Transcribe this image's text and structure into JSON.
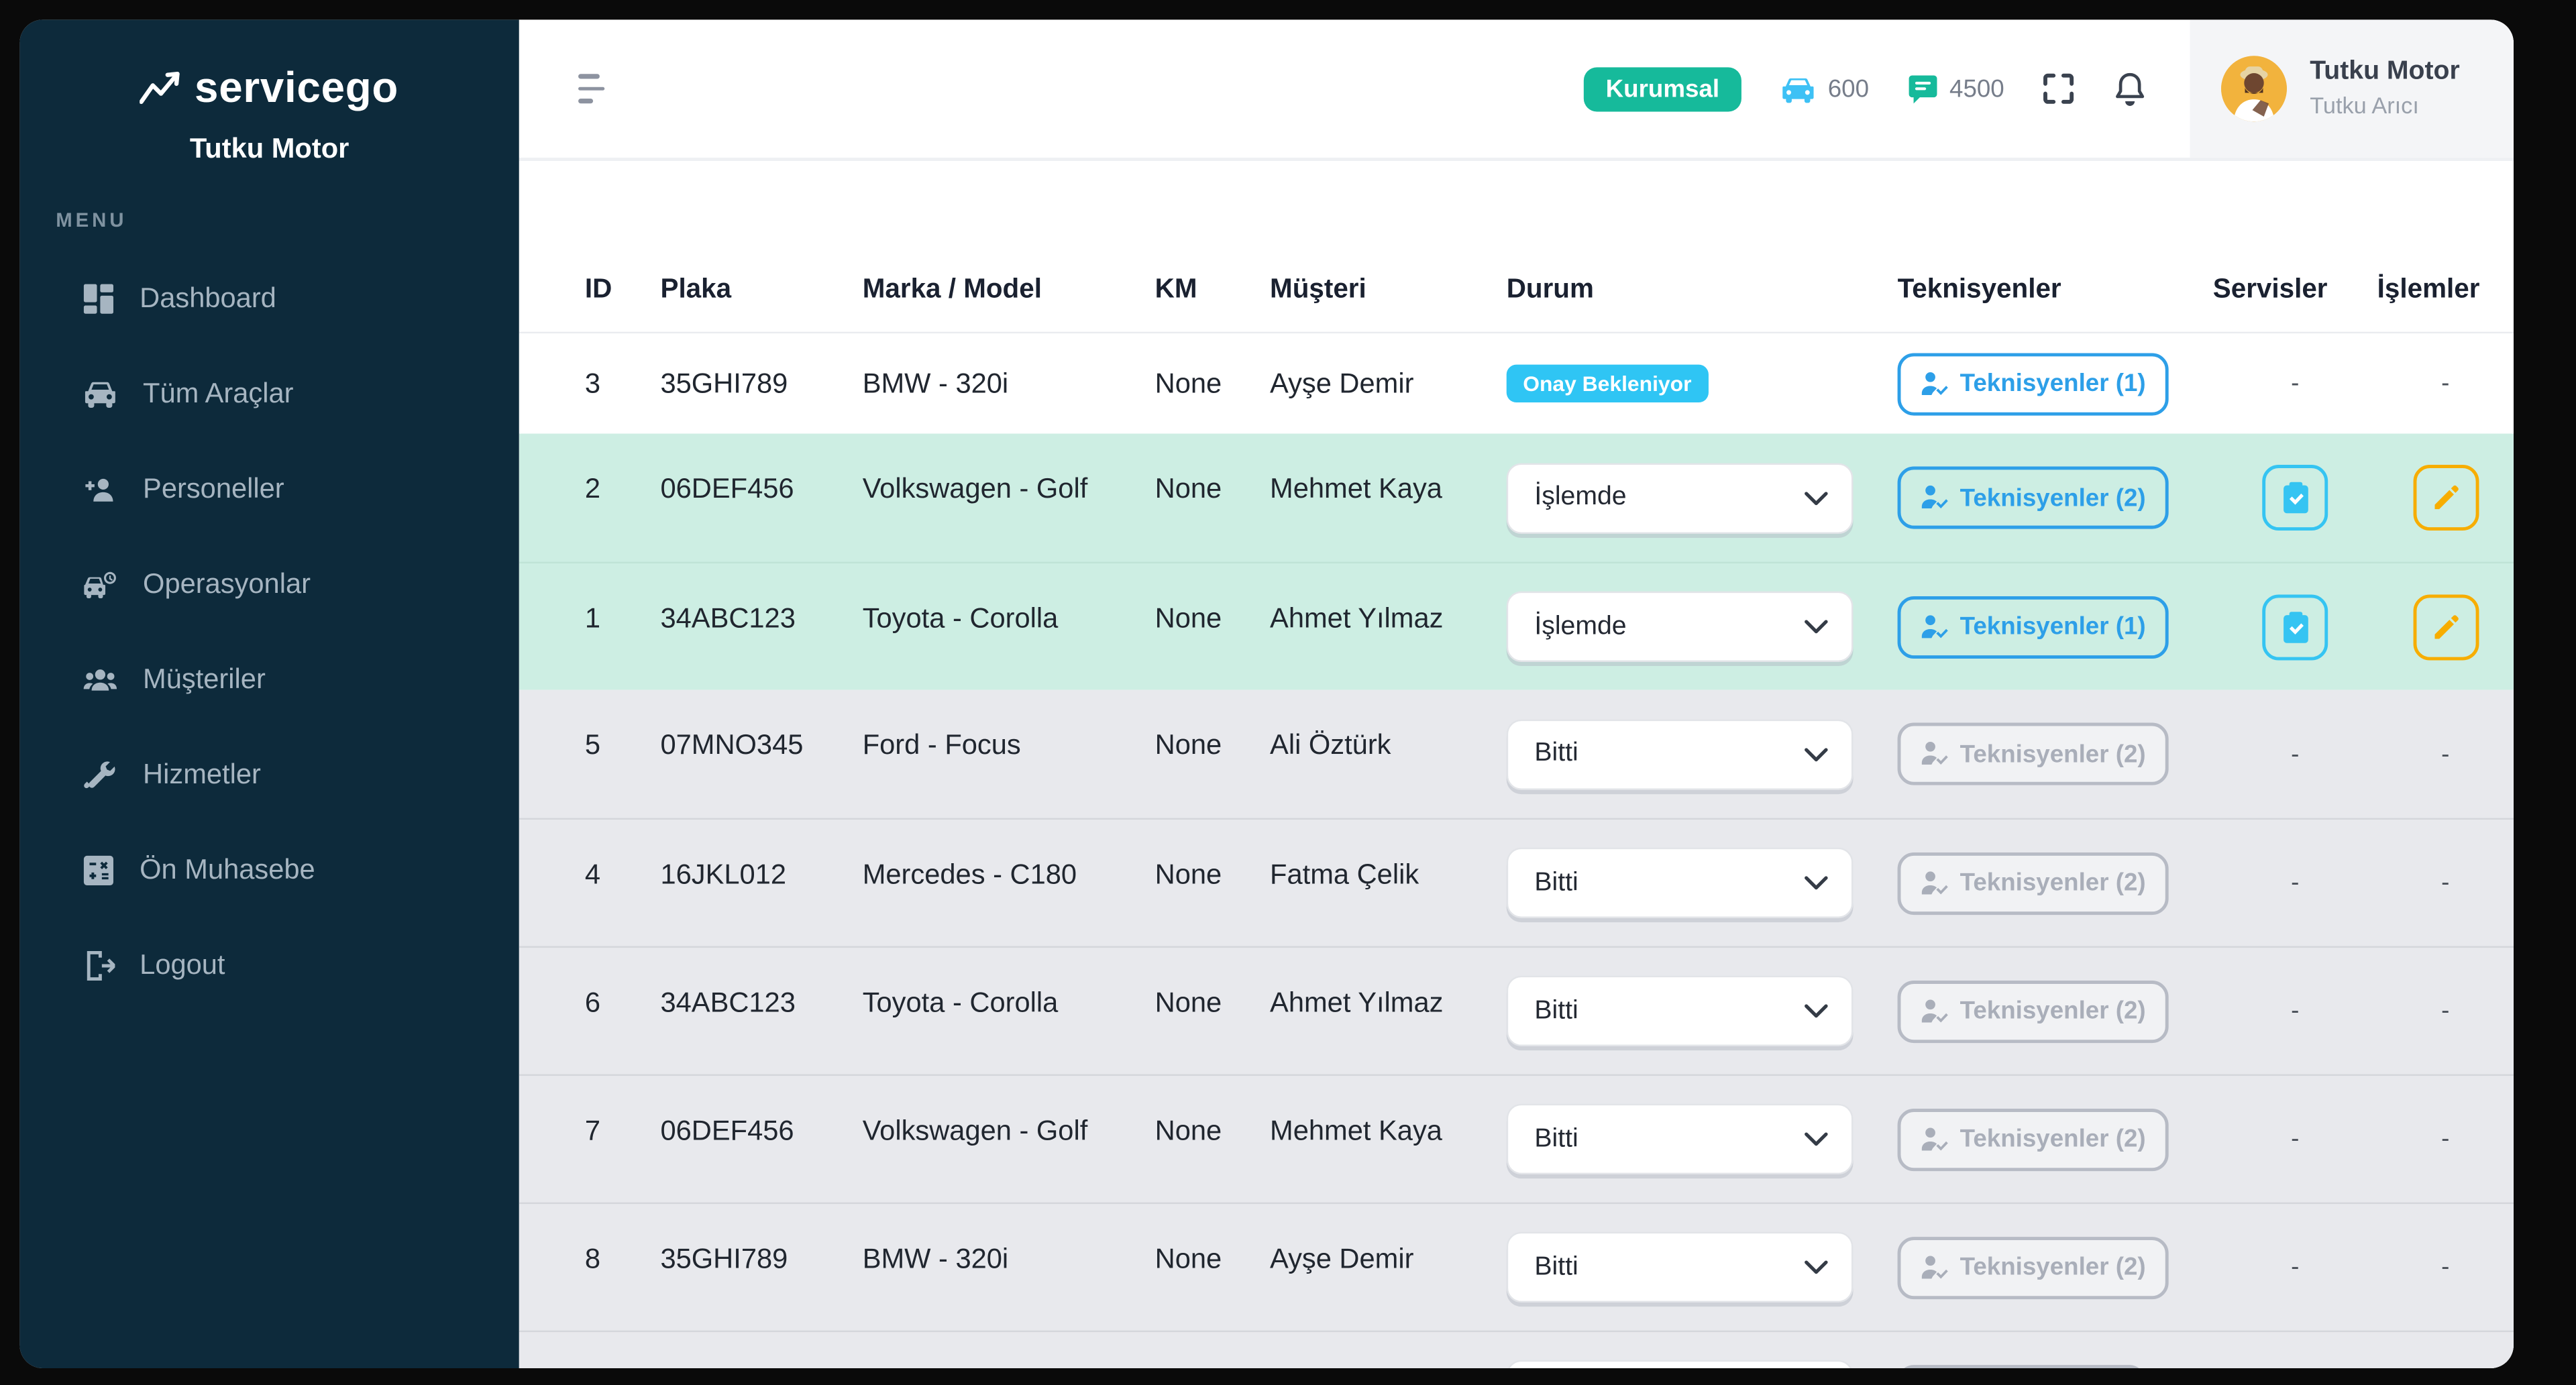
{
  "sidebar": {
    "logo_text": "servicego",
    "company_name": "Tutku Motor",
    "menu_label": "MENU",
    "items": [
      {
        "icon": "dashboard-icon",
        "label": "Dashboard"
      },
      {
        "icon": "vehicles-icon",
        "label": "Tüm Araçlar"
      },
      {
        "icon": "staff-icon",
        "label": "Personeller"
      },
      {
        "icon": "operations-icon",
        "label": "Operasyonlar"
      },
      {
        "icon": "customers-icon",
        "label": "Müşteriler"
      },
      {
        "icon": "services-icon",
        "label": "Hizmetler"
      },
      {
        "icon": "accounting-icon",
        "label": "Ön Muhasebe"
      },
      {
        "icon": "logout-icon",
        "label": "Logout"
      }
    ]
  },
  "header": {
    "plan_badge": "Kurumsal",
    "vehicle_count": "600",
    "message_count": "4500",
    "user_name": "Tutku Motor",
    "user_subtitle": "Tutku Arıcı"
  },
  "table": {
    "columns": [
      "ID",
      "Plaka",
      "Marka / Model",
      "KM",
      "Müşteri",
      "Durum",
      "Teknisyenler",
      "Servisler",
      "İşlemler"
    ],
    "dash": "-",
    "rows": [
      {
        "id": "3",
        "plate": "35GHI789",
        "model": "BMW - 320i",
        "km": "None",
        "customer": "Ayşe Demir",
        "status_type": "badge",
        "status": "Onay Bekleniyor",
        "tech_label": "Teknisyenler (1)",
        "tech_enabled": true,
        "services": "dash",
        "actions": "dash",
        "bg": "white"
      },
      {
        "id": "2",
        "plate": "06DEF456",
        "model": "Volkswagen - Golf",
        "km": "None",
        "customer": "Mehmet Kaya",
        "status_type": "select",
        "status": "İşlemde",
        "tech_label": "Teknisyenler (2)",
        "tech_enabled": true,
        "services": "button",
        "actions": "button",
        "bg": "green"
      },
      {
        "id": "1",
        "plate": "34ABC123",
        "model": "Toyota - Corolla",
        "km": "None",
        "customer": "Ahmet Yılmaz",
        "status_type": "select",
        "status": "İşlemde",
        "tech_label": "Teknisyenler (1)",
        "tech_enabled": true,
        "services": "button",
        "actions": "button",
        "bg": "green"
      },
      {
        "id": "5",
        "plate": "07MNO345",
        "model": "Ford - Focus",
        "km": "None",
        "customer": "Ali Öztürk",
        "status_type": "select",
        "status": "Bitti",
        "tech_label": "Teknisyenler (2)",
        "tech_enabled": false,
        "services": "dash",
        "actions": "dash",
        "bg": "gray"
      },
      {
        "id": "4",
        "plate": "16JKL012",
        "model": "Mercedes - C180",
        "km": "None",
        "customer": "Fatma Çelik",
        "status_type": "select",
        "status": "Bitti",
        "tech_label": "Teknisyenler (2)",
        "tech_enabled": false,
        "services": "dash",
        "actions": "dash",
        "bg": "gray"
      },
      {
        "id": "6",
        "plate": "34ABC123",
        "model": "Toyota - Corolla",
        "km": "None",
        "customer": "Ahmet Yılmaz",
        "status_type": "select",
        "status": "Bitti",
        "tech_label": "Teknisyenler (2)",
        "tech_enabled": false,
        "services": "dash",
        "actions": "dash",
        "bg": "gray"
      },
      {
        "id": "7",
        "plate": "06DEF456",
        "model": "Volkswagen - Golf",
        "km": "None",
        "customer": "Mehmet Kaya",
        "status_type": "select",
        "status": "Bitti",
        "tech_label": "Teknisyenler (2)",
        "tech_enabled": false,
        "services": "dash",
        "actions": "dash",
        "bg": "gray"
      },
      {
        "id": "8",
        "plate": "35GHI789",
        "model": "BMW - 320i",
        "km": "None",
        "customer": "Ayşe Demir",
        "status_type": "select",
        "status": "Bitti",
        "tech_label": "Teknisyenler (2)",
        "tech_enabled": false,
        "services": "dash",
        "actions": "dash",
        "bg": "gray"
      },
      {
        "partial": true,
        "id": "",
        "plate": "",
        "model": "",
        "km": "",
        "customer": "",
        "status_type": "select",
        "status": "",
        "tech_label": "",
        "tech_enabled": false,
        "services": "none",
        "actions": "none",
        "bg": "gray"
      }
    ]
  },
  "colors": {
    "sidebar_bg": "#0d2a3b",
    "badge_green": "#16ba9b",
    "status_cyan": "#2fc5f4",
    "tech_blue": "#2d9fe8",
    "services_cyan": "#35c4f2",
    "actions_amber": "#f7ad00",
    "row_green": "#cdeee3",
    "row_gray": "#e8e9ed"
  }
}
